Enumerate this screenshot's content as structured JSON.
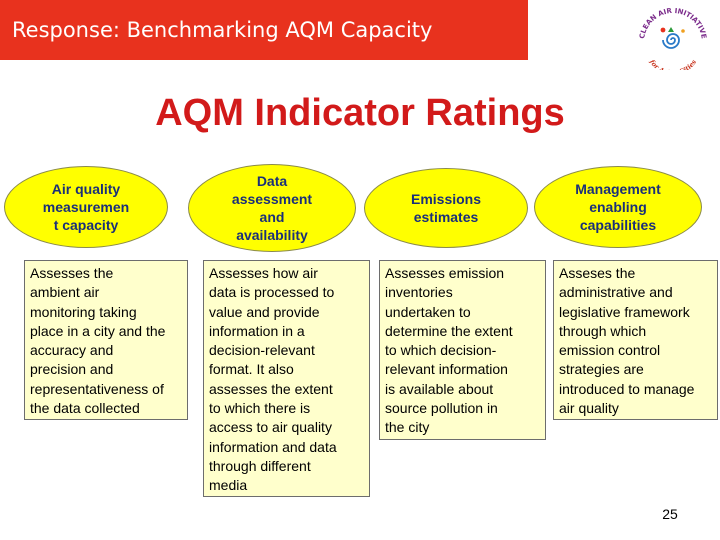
{
  "header": {
    "title": "Response: Benchmarking AQM Capacity",
    "logo": {
      "arc_text": "CLEAN AIR INITIATIVE",
      "sub_text": "for Asian Cities",
      "icon": "clean-air-initiative-logo-icon"
    }
  },
  "main_title": "AQM Indicator Ratings",
  "indicators": [
    {
      "title_lines": [
        "Air quality",
        "measuremen",
        "t capacity"
      ],
      "description_lines": [
        "Assesses the",
        "ambient air",
        "monitoring taking",
        "place in a city and the",
        "accuracy and",
        "precision and",
        "representativeness of",
        "the data collected"
      ]
    },
    {
      "title_lines": [
        "Data",
        "assessment",
        "and",
        "availability"
      ],
      "description_lines": [
        "Assesses how air",
        "data is processed to",
        "value and provide",
        "information in a",
        "decision-relevant",
        "format.  It also",
        "assesses the extent",
        "to which there is",
        "access to air quality",
        "information and data",
        "through different",
        "media"
      ]
    },
    {
      "title_lines": [
        "Emissions",
        "estimates"
      ],
      "description_lines": [
        "Assesses emission",
        "inventories",
        "undertaken to",
        "determine the extent",
        "to which decision-",
        "relevant information",
        "is available about",
        "source pollution in",
        "the city"
      ]
    },
    {
      "title_lines": [
        "Management",
        "enabling",
        "capabilities"
      ],
      "description_lines": [
        "Asseses the",
        "administrative and",
        "legislative framework",
        "through which",
        "emission control",
        "strategies are",
        "introduced to manage",
        "air quality"
      ]
    }
  ],
  "page_number": "25",
  "colors": {
    "banner": "#e8321e",
    "title": "#d21a1a",
    "oval_fill": "#ffff00",
    "oval_text": "#1a2f7a",
    "box_fill": "#ffffcc"
  }
}
